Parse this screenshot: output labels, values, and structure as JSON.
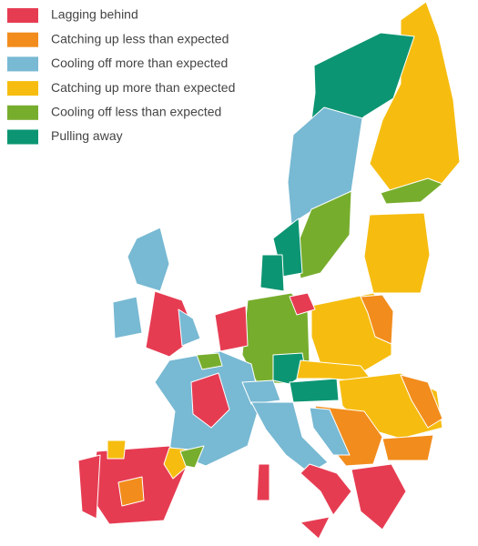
{
  "legend": [
    {
      "label": "Lagging behind",
      "color": "#e63c52"
    },
    {
      "label": "Catching up less than expected",
      "color": "#f28c1c"
    },
    {
      "label": "Cooling off more than expected",
      "color": "#78b9d3"
    },
    {
      "label": "Catching up more than expected",
      "color": "#f6bd10"
    },
    {
      "label": "Cooling off less than expected",
      "color": "#77ad2d"
    },
    {
      "label": "Pulling away",
      "color": "#0c9572"
    }
  ]
}
